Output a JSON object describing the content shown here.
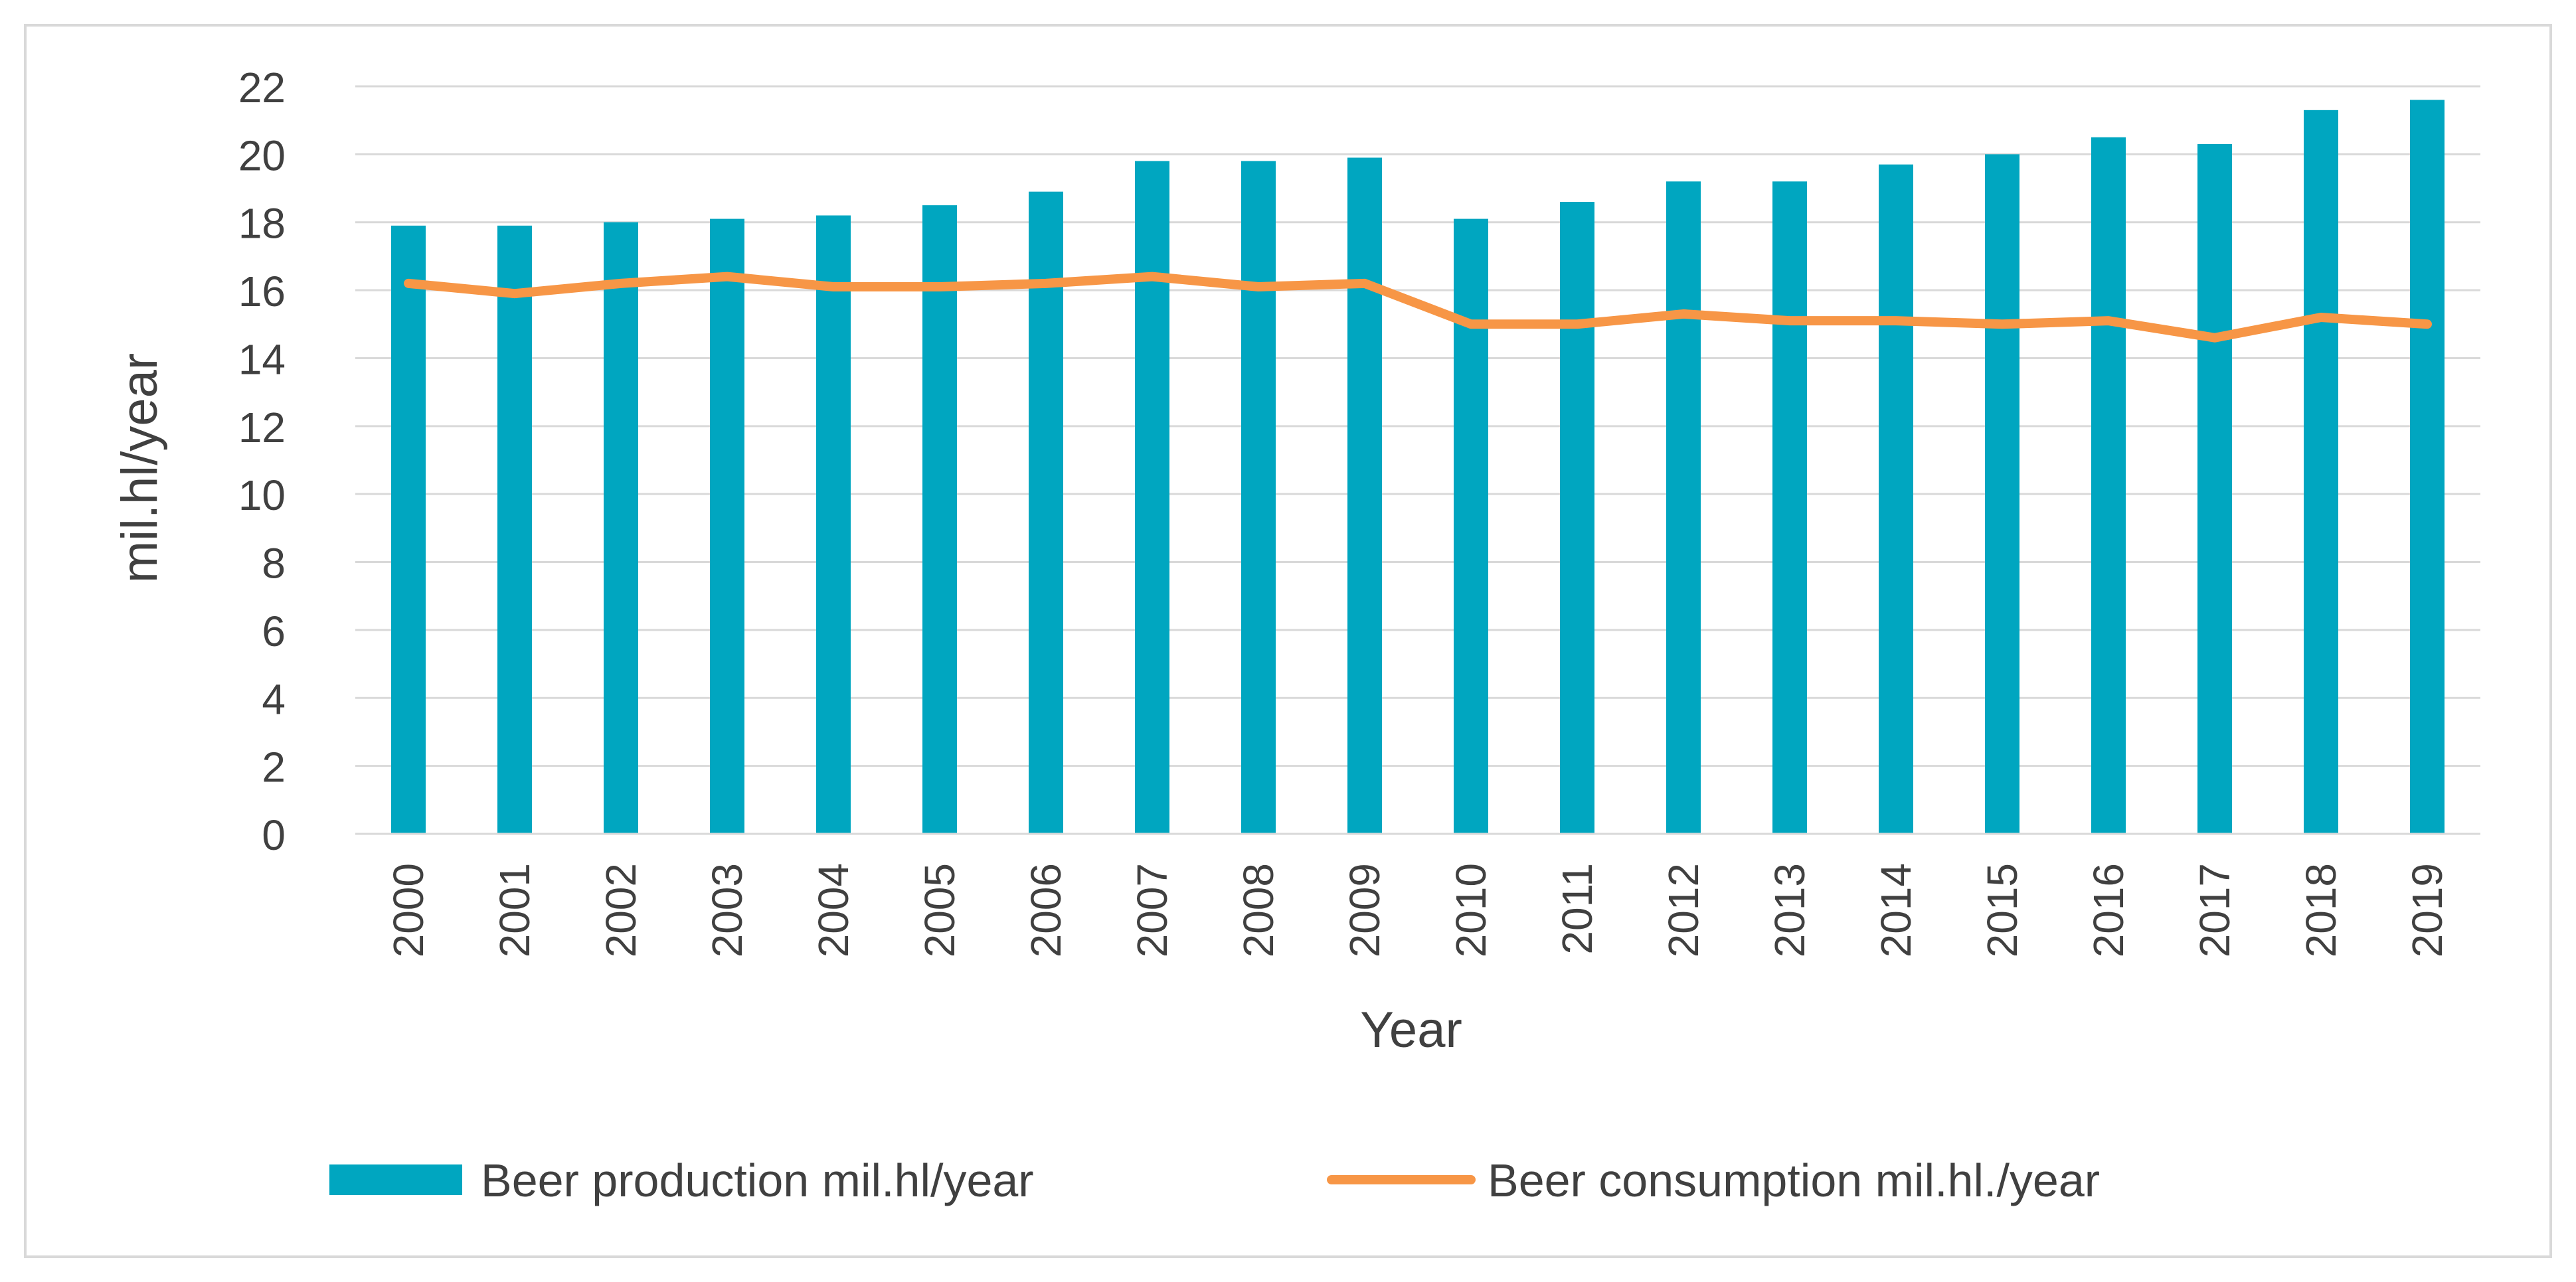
{
  "chart_data": {
    "type": "bar",
    "title": "",
    "xlabel": "Year",
    "ylabel": "mil.hl/year",
    "ylim": [
      0,
      22
    ],
    "y_ticks": [
      0,
      2,
      4,
      6,
      8,
      10,
      12,
      14,
      16,
      18,
      20,
      22
    ],
    "grid": true,
    "legend_position": "bottom",
    "categories": [
      "2000",
      "2001",
      "2002",
      "2003",
      "2004",
      "2005",
      "2006",
      "2007",
      "2008",
      "2009",
      "2010",
      "2011",
      "2012",
      "2013",
      "2014",
      "2015",
      "2016",
      "2017",
      "2018",
      "2019"
    ],
    "series": [
      {
        "name": "Beer production mil.hl/year",
        "type": "bar",
        "color": "#00a6c0",
        "values": [
          17.9,
          17.9,
          18.0,
          18.1,
          18.2,
          18.5,
          18.9,
          19.8,
          19.8,
          19.9,
          18.1,
          18.6,
          19.2,
          19.2,
          19.7,
          20.0,
          20.5,
          20.3,
          21.3,
          21.6
        ]
      },
      {
        "name": "Beer consumption mil.hl./year",
        "type": "line",
        "color": "#f79646",
        "values": [
          16.2,
          15.9,
          16.2,
          16.4,
          16.1,
          16.1,
          16.2,
          16.4,
          16.1,
          16.2,
          15.0,
          15.0,
          15.3,
          15.1,
          15.1,
          15.0,
          15.1,
          14.6,
          15.2,
          15.0
        ]
      }
    ]
  }
}
